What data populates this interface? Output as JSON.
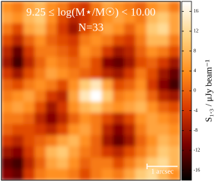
{
  "chart_data": {
    "type": "heatmap",
    "title": "9.25 ≤ log(M⋆/M☉) < 10.00",
    "subtitle": "N=33",
    "annotation": "1 arcsec",
    "colorbar_label": "S₁.₃ / μJy beam⁻¹",
    "colormap": [
      "#000000",
      "#7a0000",
      "#d93a00",
      "#ff8c1a",
      "#ffd27f",
      "#ffffff"
    ],
    "zlim": [
      -18,
      18
    ],
    "zticks": [
      16,
      12,
      8,
      4,
      0,
      -4,
      -8,
      -12,
      -16
    ],
    "values": [
      [
        4,
        2,
        6,
        8,
        4,
        2,
        -2,
        -4,
        2,
        6,
        4,
        2,
        0,
        4,
        6,
        2
      ],
      [
        6,
        4,
        8,
        10,
        4,
        -2,
        -6,
        -4,
        0,
        4,
        6,
        4,
        2,
        8,
        10,
        6
      ],
      [
        2,
        -2,
        6,
        8,
        2,
        -4,
        -8,
        -2,
        2,
        6,
        4,
        0,
        4,
        10,
        12,
        6
      ],
      [
        -2,
        -6,
        0,
        4,
        0,
        -2,
        -4,
        2,
        4,
        2,
        -2,
        -4,
        2,
        8,
        8,
        2
      ],
      [
        -6,
        -12,
        -4,
        2,
        2,
        0,
        -2,
        4,
        2,
        -4,
        -8,
        -6,
        0,
        4,
        2,
        -2
      ],
      [
        -8,
        -14,
        -6,
        0,
        4,
        2,
        0,
        2,
        -2,
        -10,
        -12,
        -8,
        -2,
        0,
        -4,
        -8
      ],
      [
        -4,
        -8,
        -2,
        2,
        6,
        4,
        2,
        0,
        -2,
        -6,
        -8,
        -4,
        2,
        -2,
        -8,
        -12
      ],
      [
        0,
        -2,
        2,
        4,
        2,
        -2,
        4,
        10,
        14,
        6,
        -2,
        0,
        4,
        -4,
        -10,
        -14
      ],
      [
        2,
        4,
        6,
        2,
        -4,
        -6,
        6,
        14,
        18,
        10,
        2,
        4,
        6,
        0,
        -6,
        -8
      ],
      [
        4,
        6,
        4,
        -2,
        -8,
        -4,
        4,
        8,
        10,
        6,
        4,
        6,
        8,
        4,
        0,
        -2
      ],
      [
        2,
        2,
        0,
        -6,
        -10,
        -6,
        0,
        4,
        2,
        -2,
        -6,
        -2,
        4,
        6,
        4,
        2
      ],
      [
        0,
        -2,
        -2,
        -4,
        -6,
        -2,
        4,
        6,
        2,
        -6,
        -10,
        -6,
        2,
        6,
        6,
        4
      ],
      [
        -4,
        -6,
        -2,
        0,
        2,
        6,
        8,
        4,
        0,
        -8,
        -12,
        -8,
        0,
        4,
        8,
        6
      ],
      [
        -8,
        -10,
        -4,
        2,
        8,
        10,
        6,
        2,
        0,
        -4,
        -6,
        -2,
        2,
        6,
        10,
        8
      ],
      [
        -12,
        -14,
        -6,
        0,
        6,
        8,
        4,
        0,
        2,
        2,
        -2,
        2,
        6,
        10,
        12,
        8
      ],
      [
        -10,
        -12,
        -4,
        2,
        4,
        4,
        2,
        -2,
        2,
        4,
        2,
        6,
        10,
        12,
        8,
        4
      ]
    ]
  }
}
